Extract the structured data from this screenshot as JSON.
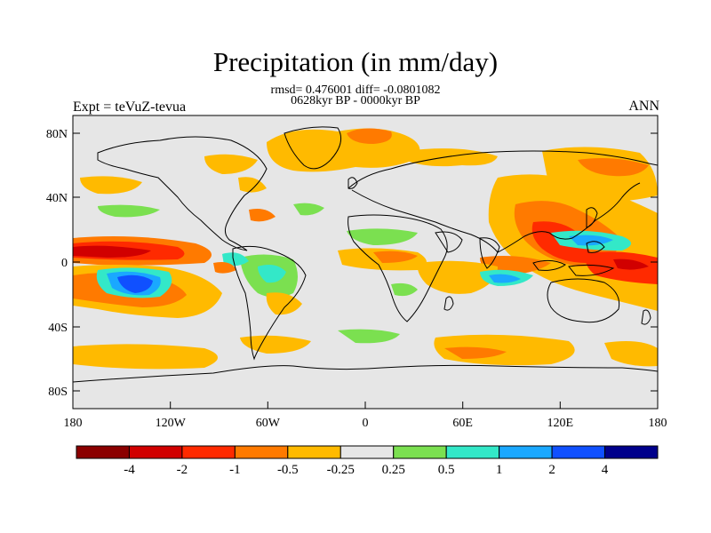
{
  "title": "Precipitation (in mm/day)",
  "stats_line1": "rmsd= 0.476001 diff= -0.0801082",
  "stats_line2": "0628kyr BP - 0000kyr BP",
  "left_label": "Expt = teVuZ-tevua",
  "right_label": "ANN",
  "y_ticks": [
    "80N",
    "40N",
    "0",
    "40S",
    "80S"
  ],
  "x_ticks": [
    "180",
    "120W",
    "60W",
    "0",
    "60E",
    "120E",
    "180"
  ],
  "colorbar": {
    "colors": [
      "#8b0000",
      "#d10000",
      "#ff2a00",
      "#ff7a00",
      "#ffba00",
      "#e6e6e6",
      "#7be050",
      "#33e8c8",
      "#1aa8ff",
      "#1050ff",
      "#00008b"
    ],
    "labels": [
      "-4",
      "-2",
      "-1",
      "-0.5",
      "-0.25",
      "0.25",
      "0.5",
      "1",
      "2",
      "4"
    ]
  },
  "colors": {
    "background_field": "#e6e6e6",
    "coast": "#000000"
  }
}
